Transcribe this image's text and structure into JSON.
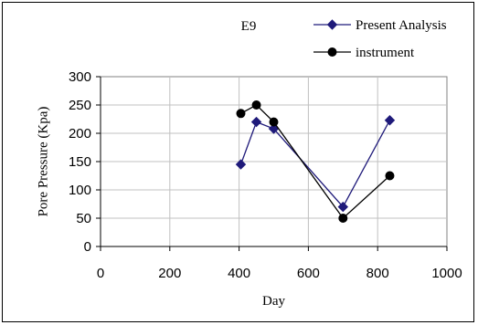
{
  "chart_data": {
    "type": "line",
    "title": "E9",
    "xlabel": "Day",
    "ylabel": "Pore Pressure (Kpa)",
    "xlim": [
      0,
      1000
    ],
    "ylim": [
      0,
      300
    ],
    "x_ticks": [
      0,
      200,
      400,
      600,
      800,
      1000
    ],
    "y_ticks": [
      0,
      50,
      100,
      150,
      200,
      250,
      300
    ],
    "grid": true,
    "legend_position": "top-right",
    "series": [
      {
        "name": "Present Analysis",
        "color": "#1f1a7a",
        "marker": "diamond",
        "points": [
          [
            405,
            145
          ],
          [
            450,
            220
          ],
          [
            500,
            208
          ],
          [
            700,
            70
          ],
          [
            835,
            223
          ]
        ]
      },
      {
        "name": "instrument",
        "color": "#000000",
        "marker": "circle",
        "points": [
          [
            405,
            235
          ],
          [
            450,
            250
          ],
          [
            500,
            220
          ],
          [
            700,
            50
          ],
          [
            835,
            125
          ]
        ]
      }
    ]
  }
}
